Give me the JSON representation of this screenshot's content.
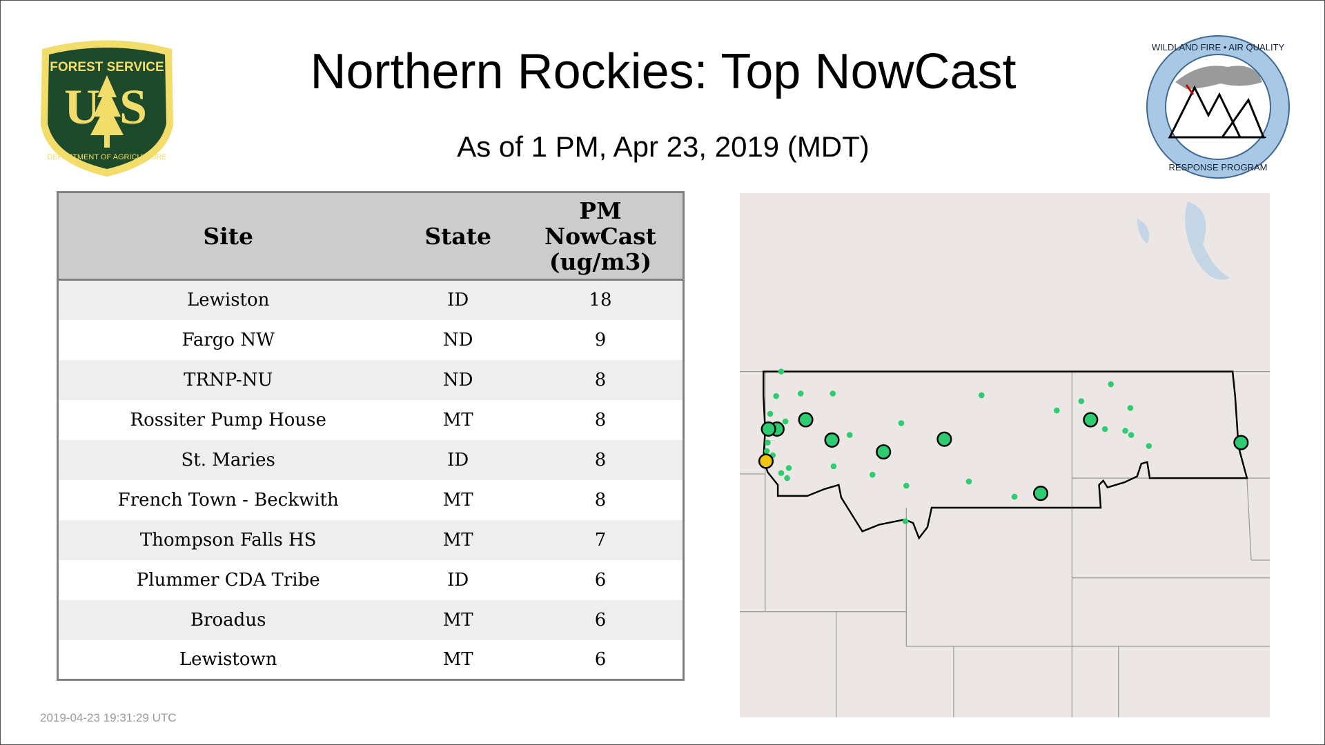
{
  "title": "Northern Rockies: Top NowCast",
  "subtitle": "As of  1 PM, Apr 23, 2019 (MDT)",
  "logos": {
    "left": {
      "text_top": "FOREST SERVICE",
      "letters": "US",
      "text_bottom": "DEPARTMENT OF AGRICULTURE"
    },
    "right": {
      "text_top": "WILDLAND FIRE • AIR QUALITY",
      "text_bottom": "RESPONSE PROGRAM"
    }
  },
  "table": {
    "headers": [
      "Site",
      "State",
      "PM NowCast (ug/m3)"
    ],
    "header_lines": [
      "PM",
      "NowCast",
      "(ug/m3)"
    ],
    "rows": [
      [
        "Lewiston",
        "ID",
        "18"
      ],
      [
        "Fargo NW",
        "ND",
        "9"
      ],
      [
        "TRNP-NU",
        "ND",
        "8"
      ],
      [
        "Rossiter Pump House",
        "MT",
        "8"
      ],
      [
        "St. Maries",
        "ID",
        "8"
      ],
      [
        "French Town - Beckwith",
        "MT",
        "8"
      ],
      [
        "Thompson Falls HS",
        "MT",
        "7"
      ],
      [
        "Plummer CDA Tribe",
        "ID",
        "6"
      ],
      [
        "Broadus",
        "MT",
        "6"
      ],
      [
        "Lewistown",
        "MT",
        "6"
      ]
    ]
  },
  "map": {
    "colors": {
      "good": "#2ecc71",
      "moderate": "#f1c40f",
      "land": "#ece6e4",
      "water": "#c4d6e6"
    }
  },
  "timestamp": "2019-04-23 19:31:29 UTC"
}
